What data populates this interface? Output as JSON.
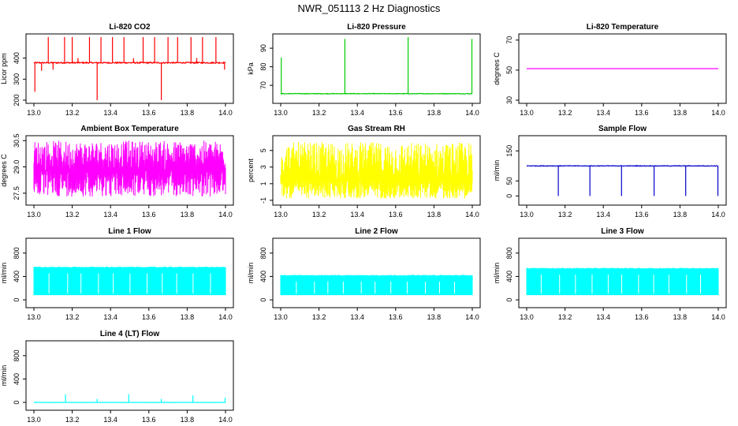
{
  "page": {
    "title": "NWR_051113 2 Hz Diagnostics"
  },
  "chart_data": [
    {
      "id": "co2",
      "type": "line",
      "title": "Li-820 CO2",
      "ylabel": "Licor ppm",
      "color": "#ff0000",
      "xlim": [
        13.0,
        14.0
      ],
      "ylim": [
        200,
        500
      ],
      "yticks": [
        "200",
        "300",
        "400"
      ],
      "ytick_values": [
        200,
        300,
        400
      ],
      "xticks": [
        "13.0",
        "13.2",
        "13.4",
        "13.6",
        "13.8",
        "14.0"
      ],
      "baseline": 378,
      "noise": 6,
      "shape": "spikes",
      "spikes": [
        [
          13.005,
          240
        ],
        [
          13.04,
          340
        ],
        [
          13.075,
          500
        ],
        [
          13.1,
          345
        ],
        [
          13.16,
          500
        ],
        [
          13.2,
          500
        ],
        [
          13.23,
          400
        ],
        [
          13.29,
          500
        ],
        [
          13.33,
          200
        ],
        [
          13.35,
          500
        ],
        [
          13.41,
          500
        ],
        [
          13.47,
          500
        ],
        [
          13.52,
          400
        ],
        [
          13.57,
          500
        ],
        [
          13.63,
          500
        ],
        [
          13.665,
          200
        ],
        [
          13.7,
          500
        ],
        [
          13.75,
          500
        ],
        [
          13.82,
          500
        ],
        [
          13.85,
          400
        ],
        [
          13.88,
          500
        ],
        [
          13.95,
          500
        ],
        [
          13.995,
          345
        ]
      ]
    },
    {
      "id": "pressure",
      "type": "line",
      "title": "Li-820 Pressure",
      "ylabel": "kPa",
      "color": "#00cc00",
      "xlim": [
        13.0,
        14.0
      ],
      "ylim": [
        62,
        96
      ],
      "yticks": [
        "70",
        "80",
        "90"
      ],
      "ytick_values": [
        70,
        80,
        90
      ],
      "xticks": [
        "13.0",
        "13.2",
        "13.4",
        "13.6",
        "13.8",
        "14.0"
      ],
      "baseline": 65.5,
      "noise": 0.3,
      "shape": "spikes",
      "spikes": [
        [
          13.003,
          85
        ],
        [
          13.335,
          95
        ],
        [
          13.665,
          96
        ],
        [
          13.998,
          95
        ]
      ]
    },
    {
      "id": "licor-temp",
      "type": "line",
      "title": "Li-820 Temperature",
      "ylabel": "degrees C",
      "color": "#ff00ff",
      "xlim": [
        13.0,
        14.0
      ],
      "ylim": [
        30,
        72
      ],
      "yticks": [
        "30",
        "50",
        "70"
      ],
      "ytick_values": [
        30,
        50,
        70
      ],
      "xticks": [
        "13.0",
        "13.2",
        "13.4",
        "13.6",
        "13.8",
        "14.0"
      ],
      "baseline": 51,
      "noise": 0,
      "shape": "flat",
      "spikes": []
    },
    {
      "id": "ambient-temp",
      "type": "line",
      "title": "Ambient Box Temperature",
      "ylabel": "degrees C",
      "color": "#ff00ff",
      "xlim": [
        13.0,
        14.0
      ],
      "ylim": [
        27.0,
        30.6
      ],
      "yticks": [
        "27.5",
        "29.0",
        "30.5"
      ],
      "ytick_values": [
        27.5,
        29.0,
        30.5
      ],
      "xticks": [
        "13.0",
        "13.2",
        "13.4",
        "13.6",
        "13.8",
        "14.0"
      ],
      "baseline": 28.8,
      "noise": 0.7,
      "shape": "band",
      "lower": 27.3,
      "upper": 30.5,
      "spikes": []
    },
    {
      "id": "gas-rh",
      "type": "line",
      "title": "Gas Stream RH",
      "ylabel": "percent",
      "color": "#ffff00",
      "xlim": [
        13.0,
        14.0
      ],
      "ylim": [
        -1.2,
        6.4
      ],
      "yticks": [
        "-1",
        "1",
        "3",
        "5"
      ],
      "ytick_values": [
        -1,
        1,
        3,
        5
      ],
      "xticks": [
        "13.0",
        "13.2",
        "13.4",
        "13.6",
        "13.8",
        "14.0"
      ],
      "baseline": 1.5,
      "noise": 2.0,
      "shape": "band",
      "lower": -0.8,
      "upper": 6.0,
      "spikes": []
    },
    {
      "id": "sample-flow",
      "type": "line",
      "title": "Sample Flow",
      "ylabel": "ml/min",
      "color": "#0000cc",
      "xlim": [
        13.0,
        14.0
      ],
      "ylim": [
        -20,
        190
      ],
      "yticks": [
        "0",
        "50",
        "150"
      ],
      "ytick_values": [
        0,
        50,
        150
      ],
      "xticks": [
        "13.0",
        "13.2",
        "13.4",
        "13.6",
        "13.8",
        "14.0"
      ],
      "baseline": 100,
      "noise": 2,
      "shape": "dips",
      "spikes": [
        [
          13.165,
          0
        ],
        [
          13.33,
          0
        ],
        [
          13.495,
          0
        ],
        [
          13.665,
          0
        ],
        [
          13.83,
          0
        ],
        [
          13.998,
          0
        ]
      ]
    },
    {
      "id": "line1-flow",
      "type": "line",
      "title": "Line 1 Flow",
      "ylabel": "ml/min",
      "color": "#00ffff",
      "xlim": [
        13.0,
        14.0
      ],
      "ylim": [
        -80,
        1000
      ],
      "yticks": [
        "0",
        "400",
        "800"
      ],
      "ytick_values": [
        0,
        400,
        800
      ],
      "xticks": [
        "13.0",
        "13.2",
        "13.4",
        "13.6",
        "13.8",
        "14.0"
      ],
      "baseline": 560,
      "noise": 8,
      "shape": "block",
      "lower": 80,
      "upper": 560,
      "spikes": []
    },
    {
      "id": "line2-flow",
      "type": "line",
      "title": "Line 2 Flow",
      "ylabel": "ml/min",
      "color": "#00ffff",
      "xlim": [
        13.0,
        14.0
      ],
      "ylim": [
        -80,
        1000
      ],
      "yticks": [
        "0",
        "400",
        "800"
      ],
      "ytick_values": [
        0,
        400,
        800
      ],
      "xticks": [
        "13.0",
        "13.2",
        "13.4",
        "13.6",
        "13.8",
        "14.0"
      ],
      "baseline": 420,
      "noise": 8,
      "shape": "block",
      "lower": 80,
      "upper": 420,
      "spikes": []
    },
    {
      "id": "line3-flow",
      "type": "line",
      "title": "Line 3 Flow",
      "ylabel": "ml/min",
      "color": "#00ffff",
      "xlim": [
        13.0,
        14.0
      ],
      "ylim": [
        -80,
        1000
      ],
      "yticks": [
        "0",
        "400",
        "800"
      ],
      "ytick_values": [
        0,
        400,
        800
      ],
      "xticks": [
        "13.0",
        "13.2",
        "13.4",
        "13.6",
        "13.8",
        "14.0"
      ],
      "baseline": 540,
      "noise": 8,
      "shape": "block",
      "lower": 80,
      "upper": 540,
      "spikes": []
    },
    {
      "id": "line4-flow",
      "type": "line",
      "title": "Line 4 (LT) Flow",
      "ylabel": "ml/min",
      "color": "#00ffff",
      "xlim": [
        13.0,
        14.0
      ],
      "ylim": [
        -80,
        1000
      ],
      "yticks": [
        "0",
        "400",
        "800"
      ],
      "ytick_values": [
        0,
        400,
        800
      ],
      "xticks": [
        "13.0",
        "13.2",
        "13.4",
        "13.6",
        "13.8",
        "14.0"
      ],
      "baseline": 0,
      "noise": 2,
      "shape": "spikes",
      "spikes": [
        [
          13.165,
          140
        ],
        [
          13.33,
          60
        ],
        [
          13.495,
          140
        ],
        [
          13.665,
          60
        ],
        [
          13.83,
          120
        ],
        [
          13.998,
          80
        ]
      ]
    }
  ]
}
